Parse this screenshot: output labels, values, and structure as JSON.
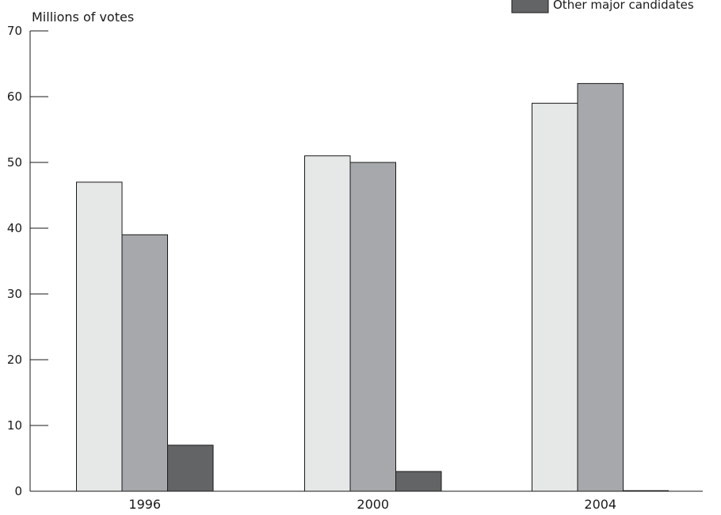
{
  "chart_data": {
    "type": "bar",
    "title": "",
    "xlabel": "",
    "ylabel": "Millions of votes",
    "ylim": [
      0,
      70
    ],
    "yticks": [
      "0",
      "10",
      "20",
      "30",
      "40",
      "50",
      "60",
      "70"
    ],
    "categories": [
      "1996",
      "2000",
      "2004"
    ],
    "series": [
      {
        "name": "",
        "color": "#e6e7e7",
        "values": [
          47,
          51,
          59
        ]
      },
      {
        "name": "",
        "color": "#a7a8ab",
        "values": [
          39,
          50,
          62
        ]
      },
      {
        "name": "Other major candidates",
        "color": "#636466",
        "values": [
          7,
          3,
          0
        ]
      }
    ],
    "legend_visible_text": "Other major candidates",
    "legend_placement": "top-right",
    "grid": false
  }
}
